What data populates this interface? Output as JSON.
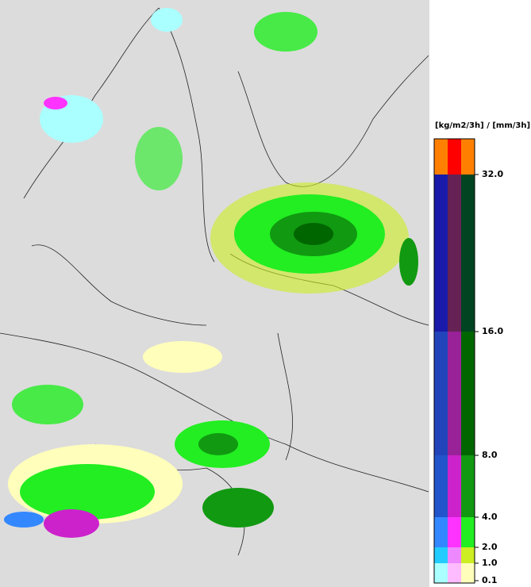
{
  "legend": {
    "title": "[kg/m2/3h] / [mm/3h]",
    "levels": [
      {
        "value": 0.1,
        "label": "0.1"
      },
      {
        "value": 1,
        "label": "1.0"
      },
      {
        "value": 2,
        "label": "2.0"
      },
      {
        "value": 4,
        "label": "4.0"
      },
      {
        "value": 8,
        "label": "8.0"
      },
      {
        "value": 16,
        "label": "16.0"
      },
      {
        "value": 32,
        "label": "32.0"
      }
    ],
    "colors": [
      [
        "#aaffff",
        "#ffbbff",
        "#ffffbb"
      ],
      [
        "#22ccff",
        "#ee88ff",
        "#ccee22"
      ],
      [
        "#3388ff",
        "#ff33ff",
        "#22ee22"
      ],
      [
        "#2255cc",
        "#cc22cc",
        "#119911"
      ],
      [
        "#2244bb",
        "#992299",
        "#006600"
      ],
      [
        "#1a1aaa",
        "#662255",
        "#004422"
      ],
      [
        "#ff8000",
        "#ff0000",
        "#ff8000"
      ]
    ]
  }
}
